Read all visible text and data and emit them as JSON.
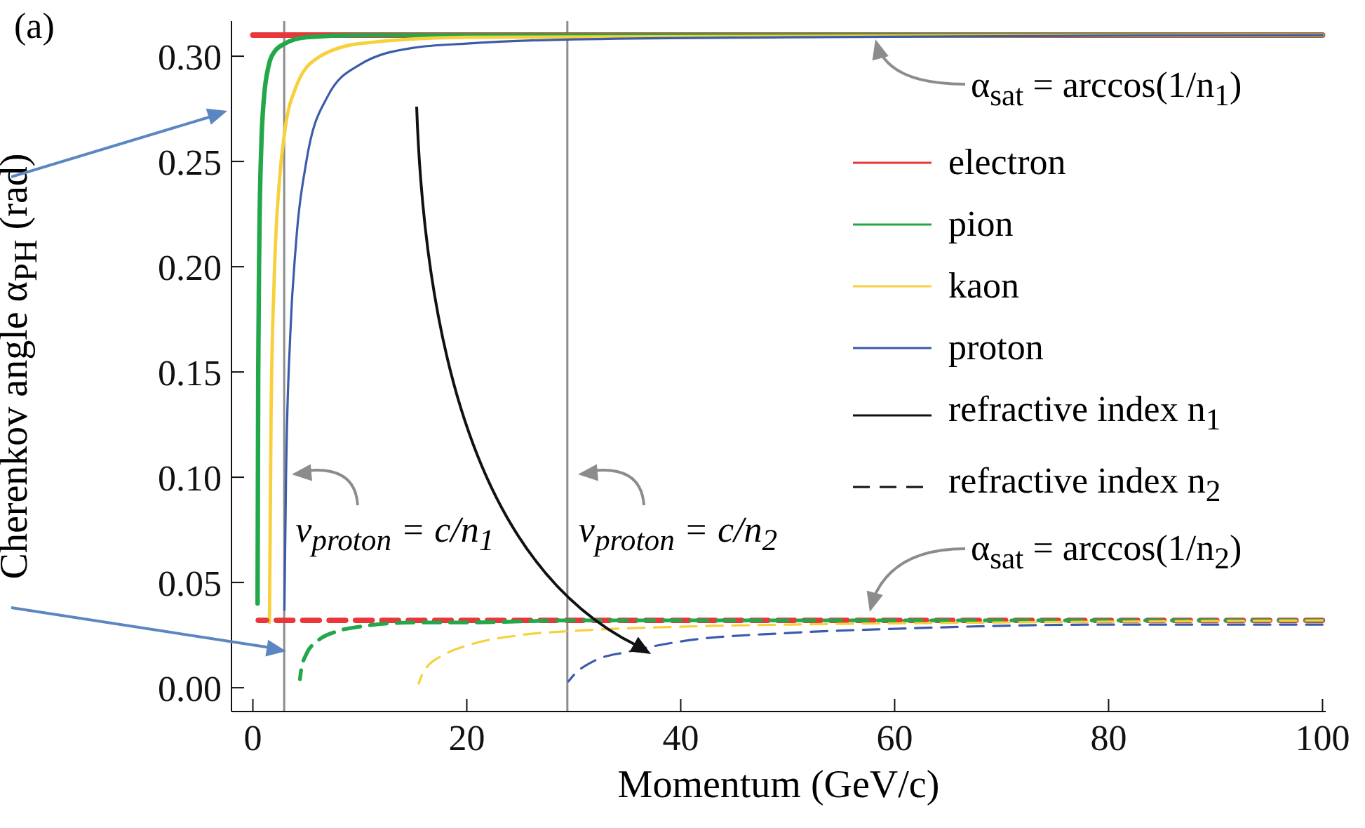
{
  "chart_data": {
    "type": "line",
    "xlabel": "Momentum (GeV/c)",
    "ylabel": "Cherenkov angle α$_{PH}$ (rad)",
    "xlim": [
      -2,
      100.3
    ],
    "ylim": [
      -0.0113,
      0.3167
    ],
    "xticks": [
      0,
      20,
      40,
      60,
      80,
      100
    ],
    "yticks": [
      {
        "value": 0,
        "label": "0.00"
      },
      {
        "value": 0.05,
        "label": "0.05"
      },
      {
        "value": 0.1,
        "label": "0.10"
      },
      {
        "value": 0.15,
        "label": "0.15"
      },
      {
        "value": 0.2,
        "label": "0.20"
      },
      {
        "value": 0.25,
        "label": "0.25"
      },
      {
        "value": 0.3,
        "label": "0.30"
      }
    ],
    "legend": "top right",
    "series": [
      {
        "name": "electron",
        "color": "#e8373a",
        "line_style": "solid",
        "x": [
          0,
          100
        ],
        "values": [
          0.31,
          0.31
        ]
      },
      {
        "name": "pion",
        "color": "#22a84a",
        "line_style": "solid",
        "x": [
          0.44,
          0.5,
          0.6,
          0.8,
          1,
          1.5,
          2,
          3,
          5,
          10,
          100
        ],
        "values": [
          0.04,
          0.149,
          0.211,
          0.259,
          0.278,
          0.296,
          0.302,
          0.306,
          0.309,
          0.31,
          0.31
        ]
      },
      {
        "name": "kaon",
        "color": "#f7d03c",
        "line_style": "solid",
        "x": [
          1.55,
          1.7,
          2,
          2.5,
          3,
          4,
          6,
          10,
          20,
          100
        ],
        "values": [
          0.031,
          0.129,
          0.195,
          0.242,
          0.265,
          0.285,
          0.299,
          0.306,
          0.309,
          0.31
        ]
      },
      {
        "name": "proton",
        "color": "#3b5bab",
        "line_style": "solid",
        "x": [
          2.95,
          3.1,
          3.5,
          4,
          5,
          7,
          10,
          15,
          20,
          30,
          50,
          100
        ],
        "values": [
          0.037,
          0.1,
          0.168,
          0.209,
          0.25,
          0.281,
          0.296,
          0.304,
          0.306,
          0.308,
          0.309,
          0.31
        ]
      },
      {
        "color": "#e8373a",
        "line_style": "dashed",
        "x": [
          0.5,
          100
        ],
        "values": [
          0.032,
          0.032
        ]
      },
      {
        "color": "#22a84a",
        "line_style": "dashed",
        "x": [
          4.4,
          4.5,
          5,
          6,
          8,
          10,
          15,
          20,
          30,
          50,
          100
        ],
        "values": [
          0.004,
          0.008,
          0.016,
          0.022,
          0.027,
          0.029,
          0.031,
          0.031,
          0.032,
          0.032,
          0.032
        ]
      },
      {
        "color": "#f7d03c",
        "line_style": "dashed",
        "x": [
          15.5,
          16,
          18,
          20,
          25,
          30,
          40,
          50,
          70,
          100
        ],
        "values": [
          0.002,
          0.008,
          0.016,
          0.02,
          0.025,
          0.027,
          0.029,
          0.03,
          0.031,
          0.032
        ]
      },
      {
        "color": "#3b5bab",
        "line_style": "dashed",
        "x": [
          29.5,
          30,
          32,
          35,
          40,
          50,
          60,
          80,
          100
        ],
        "values": [
          0.003,
          0.006,
          0.013,
          0.017,
          0.022,
          0.026,
          0.028,
          0.03,
          0.03
        ]
      }
    ],
    "ref_lines": [
      {
        "axis": "x",
        "value": 2.93,
        "label": "v$_{proton}$ = c/n$_{1}$",
        "color": "#8c8c8c"
      },
      {
        "axis": "x",
        "value": 29.4,
        "label": "v$_{proton}$ = c/n$_{2}$",
        "color": "#8c8c8c"
      }
    ],
    "annotations": [
      "refractive index n$_{1}$",
      "refractive index n$_{2}$",
      "α$_{sat}$ = arccos(1/n$_{1}$)",
      "α$_{sat}$ = arccos(1/n$_{2}$)",
      "(a)"
    ]
  }
}
